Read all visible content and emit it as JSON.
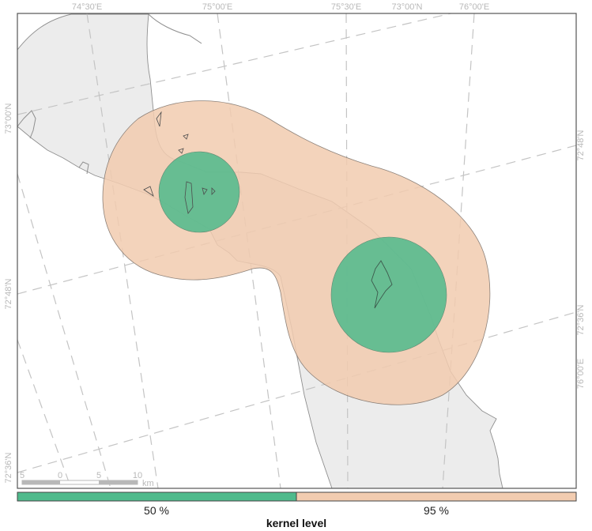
{
  "colors": {
    "land": "#ececec",
    "land_stroke": "#8f8f8f",
    "kernel_50": "#4fba8c",
    "kernel_95": "#f2ccb0",
    "grid": "#c4c4c4",
    "frame": "#555555"
  },
  "map": {
    "top_ticks": [
      "74°30'E",
      "75°00'E",
      "75°30'E",
      "73°00'N",
      "76°00'E"
    ],
    "left_ticks": [
      "73°00'N",
      "72°48'N",
      "72°36'N"
    ],
    "right_ticks": [
      "72°48'N",
      "72°36'N",
      "76°00'E"
    ],
    "scale_bar": {
      "labels": [
        "5",
        "0",
        "5",
        "10"
      ],
      "unit": "km"
    }
  },
  "legend": {
    "title": "kernel level",
    "items": [
      {
        "label": "50 %",
        "color": "#4fba8c"
      },
      {
        "label": "95 %",
        "color": "#f2ccb0"
      }
    ]
  }
}
